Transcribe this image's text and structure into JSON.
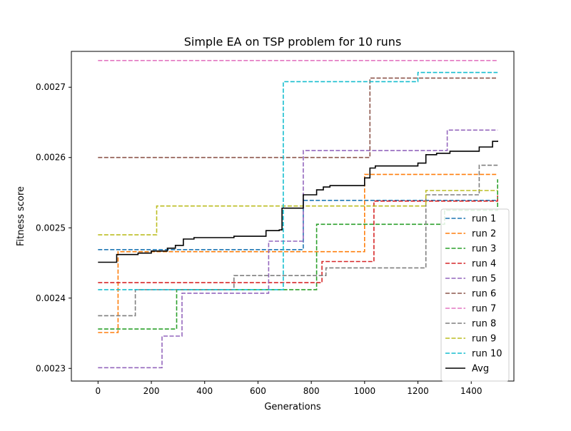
{
  "chart_data": {
    "type": "line",
    "title": "Simple EA on TSP problem for 10 runs",
    "xlabel": "Generations",
    "ylabel": "Fitness score",
    "xlim": [
      -100,
      1560
    ],
    "ylim": [
      0.002282,
      0.002751
    ],
    "xticks": [
      0,
      200,
      400,
      600,
      800,
      1000,
      1200,
      1400
    ],
    "yticks": [
      0.0023,
      0.0024,
      0.0025,
      0.0026,
      0.0027
    ],
    "ytick_labels": [
      "0.0023",
      "0.0024",
      "0.0025",
      "0.0026",
      "0.0027"
    ],
    "legend_position": "lower-right",
    "grid": false,
    "series": [
      {
        "name": "run 1",
        "color": "#1f77b4",
        "style": "dashed",
        "steps": [
          [
            0,
            0.002469
          ],
          [
            770,
            0.002539
          ],
          [
            1499,
            0.002539
          ]
        ]
      },
      {
        "name": "run 2",
        "color": "#ff7f0e",
        "style": "dashed",
        "steps": [
          [
            0,
            0.002351
          ],
          [
            75,
            0.002466
          ],
          [
            1000,
            0.002576
          ],
          [
            1499,
            0.002576
          ]
        ]
      },
      {
        "name": "run 3",
        "color": "#2ca02c",
        "style": "dashed",
        "steps": [
          [
            0,
            0.002356
          ],
          [
            295,
            0.002412
          ],
          [
            820,
            0.002505
          ],
          [
            1300,
            0.002525
          ],
          [
            1499,
            0.002569
          ]
        ]
      },
      {
        "name": "run 4",
        "color": "#d62728",
        "style": "dashed",
        "steps": [
          [
            0,
            0.002422
          ],
          [
            840,
            0.002452
          ],
          [
            1035,
            0.002538
          ],
          [
            1499,
            0.002546
          ]
        ]
      },
      {
        "name": "run 5",
        "color": "#9467bd",
        "style": "dashed",
        "steps": [
          [
            0,
            0.002301
          ],
          [
            240,
            0.002346
          ],
          [
            315,
            0.002407
          ],
          [
            640,
            0.002481
          ],
          [
            770,
            0.00261
          ],
          [
            1310,
            0.002639
          ],
          [
            1499,
            0.002639
          ]
        ]
      },
      {
        "name": "run 6",
        "color": "#8c564b",
        "style": "dashed",
        "steps": [
          [
            0,
            0.0026
          ],
          [
            1020,
            0.002713
          ],
          [
            1499,
            0.002713
          ]
        ]
      },
      {
        "name": "run 7",
        "color": "#e377c2",
        "style": "dashed",
        "steps": [
          [
            0,
            0.002738
          ],
          [
            1499,
            0.002738
          ]
        ]
      },
      {
        "name": "run 8",
        "color": "#7f7f7f",
        "style": "dashed",
        "steps": [
          [
            0,
            0.002375
          ],
          [
            140,
            0.002412
          ],
          [
            510,
            0.002432
          ],
          [
            855,
            0.002443
          ],
          [
            1230,
            0.002547
          ],
          [
            1430,
            0.002589
          ],
          [
            1499,
            0.002589
          ]
        ]
      },
      {
        "name": "run 9",
        "color": "#bcbd22",
        "style": "dashed",
        "steps": [
          [
            0,
            0.00249
          ],
          [
            220,
            0.002531
          ],
          [
            1230,
            0.002553
          ],
          [
            1499,
            0.002553
          ]
        ]
      },
      {
        "name": "run 10",
        "color": "#17becf",
        "style": "dashed",
        "steps": [
          [
            0,
            0.002412
          ],
          [
            695,
            0.002708
          ],
          [
            1200,
            0.002721
          ],
          [
            1499,
            0.002721
          ]
        ]
      },
      {
        "name": "Avg",
        "color": "#000000",
        "style": "solid",
        "steps": [
          [
            0,
            0.002451
          ],
          [
            70,
            0.002462
          ],
          [
            150,
            0.002464
          ],
          [
            200,
            0.002467
          ],
          [
            260,
            0.002471
          ],
          [
            290,
            0.002475
          ],
          [
            320,
            0.002484
          ],
          [
            360,
            0.002486
          ],
          [
            510,
            0.002488
          ],
          [
            630,
            0.002496
          ],
          [
            680,
            0.002497
          ],
          [
            690,
            0.002528
          ],
          [
            770,
            0.002547
          ],
          [
            820,
            0.002554
          ],
          [
            845,
            0.002558
          ],
          [
            870,
            0.00256
          ],
          [
            1000,
            0.002571
          ],
          [
            1020,
            0.002585
          ],
          [
            1040,
            0.002588
          ],
          [
            1200,
            0.002592
          ],
          [
            1230,
            0.002604
          ],
          [
            1270,
            0.002606
          ],
          [
            1320,
            0.002609
          ],
          [
            1430,
            0.002615
          ],
          [
            1480,
            0.002623
          ],
          [
            1499,
            0.002624
          ]
        ]
      }
    ]
  }
}
